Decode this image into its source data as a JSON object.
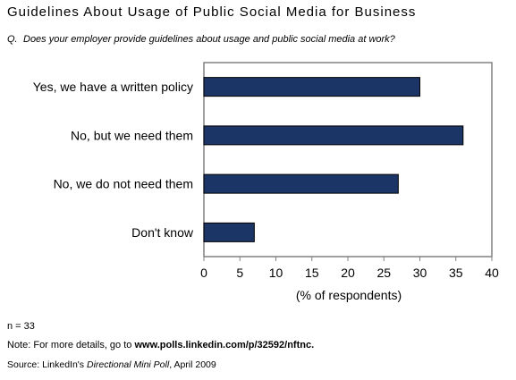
{
  "header": {
    "title": "Guidelines About Usage of Public Social Media for Business",
    "question_label": "Q.",
    "question_text": "Does your employer provide guidelines about usage and public social media at work?"
  },
  "chart_data": {
    "type": "bar",
    "orientation": "horizontal",
    "categories": [
      "Yes, we have a written policy",
      "No, but we need them",
      "No, we do not need them",
      "Don't know"
    ],
    "values": [
      30,
      36,
      27,
      7
    ],
    "title": "Guidelines About Usage of Public Social Media for Business",
    "xlabel": "(% of respondents)",
    "ylabel": "",
    "xlim": [
      0,
      40
    ],
    "xticks": [
      0,
      5,
      10,
      15,
      20,
      25,
      30,
      35,
      40
    ],
    "grid": false,
    "legend": "none",
    "bar_color": "#1b3566"
  },
  "footer": {
    "n": "n = 33",
    "note_prefix": "Note: For more details, go to ",
    "note_link": "www.polls.linkedin.com/p/32592/nftnc.",
    "source_prefix": "Source: LinkedIn's ",
    "source_italic": "Directional Mini Poll",
    "source_suffix": ", April 2009"
  }
}
